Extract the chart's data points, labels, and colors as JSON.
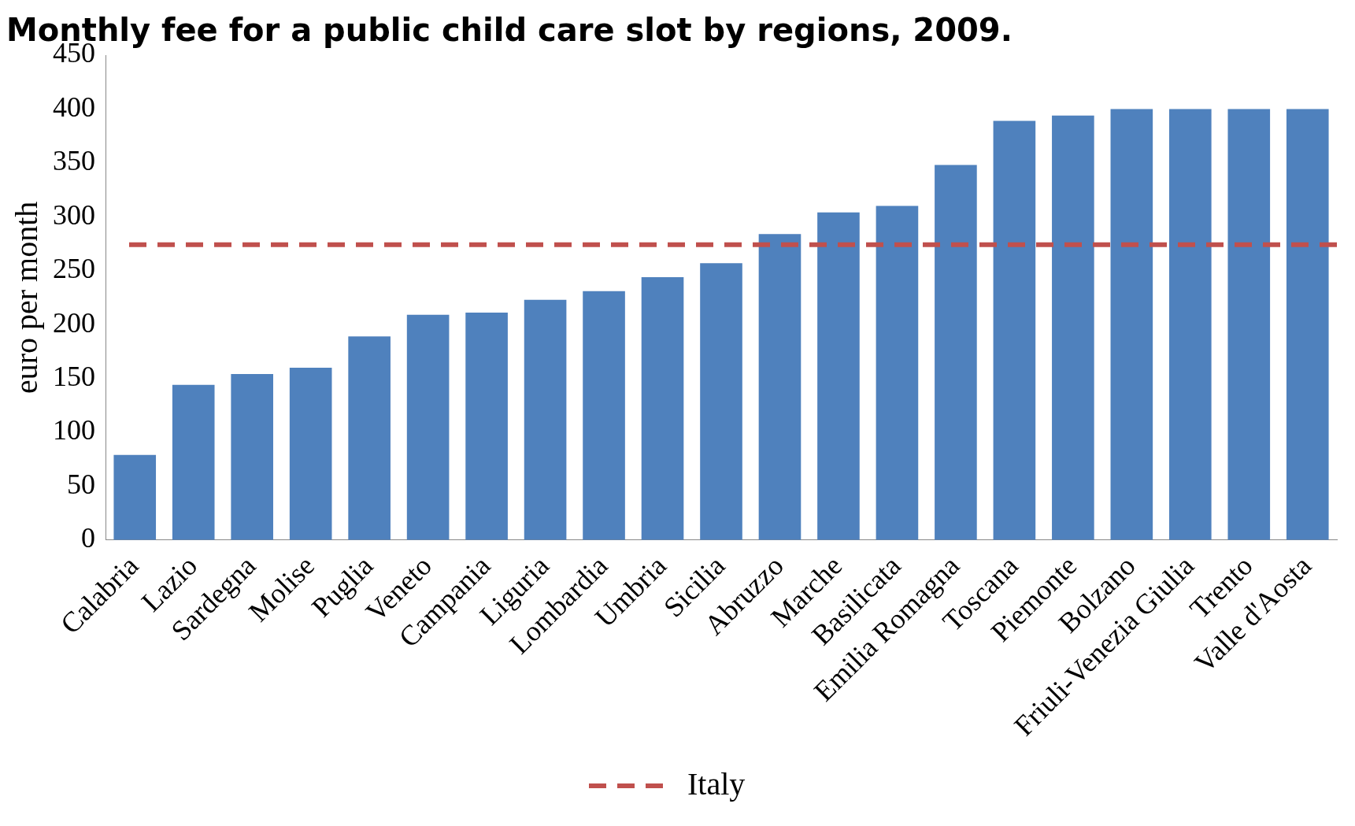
{
  "chart_data": {
    "type": "bar",
    "title": "Monthly fee for a public child care slot by regions, 2009.",
    "ylabel": "euro per month",
    "categories": [
      "Calabria",
      "Lazio",
      "Sardegna",
      "Molise",
      "Puglia",
      "Veneto",
      "Campania",
      "Liguria",
      "Lombardia",
      "Umbria",
      "Sicilia",
      "Abruzzo",
      "Marche",
      "Basilicata",
      "Emilia Romagna",
      "Toscana",
      "Piemonte",
      "Bolzano",
      "Friuli-Venezia Giulia",
      "Trento",
      "Valle d'Aosta"
    ],
    "values": [
      79,
      144,
      154,
      160,
      189,
      209,
      211,
      223,
      231,
      244,
      257,
      284,
      304,
      310,
      348,
      389,
      394,
      400,
      400,
      400,
      400
    ],
    "color": "#4f81bd",
    "ylim": [
      0,
      450
    ],
    "yticks": [
      0,
      50,
      100,
      150,
      200,
      250,
      300,
      350,
      400,
      450
    ],
    "grid": false,
    "legend": "bottom",
    "ref_lines": [
      {
        "axis": "y",
        "value": 274,
        "label": "Italy",
        "color": "#c0504d",
        "line_style": "dashed"
      }
    ]
  }
}
